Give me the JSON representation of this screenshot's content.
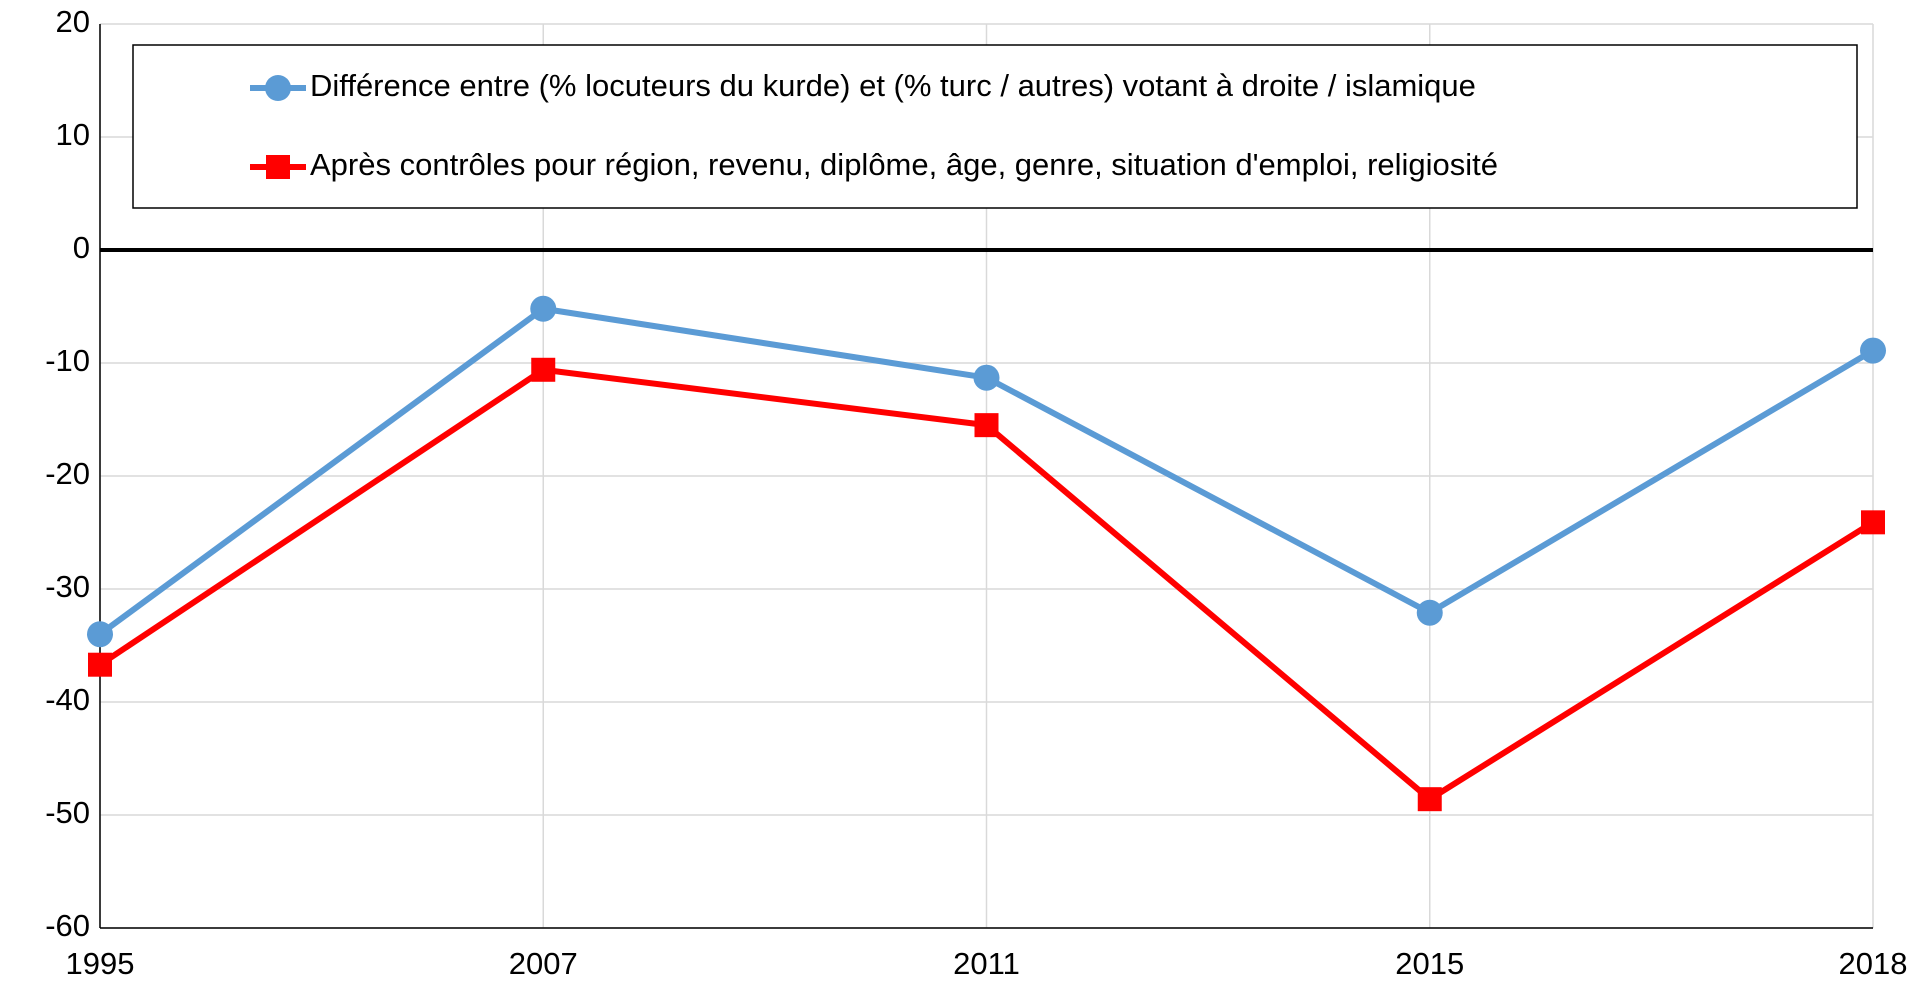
{
  "chart_data": {
    "type": "line",
    "categories": [
      "1995",
      "2007",
      "2011",
      "2015",
      "2018"
    ],
    "series": [
      {
        "name": "Différence entre (% locuteurs du kurde) et (% turc / autres) votant à droite / islamique",
        "color": "#5b9bd5",
        "marker": "circle",
        "values": [
          -34,
          -5.2,
          -11.3,
          -32.1,
          -8.9
        ]
      },
      {
        "name": "Après contrôles pour région, revenu, diplôme, âge, genre, situation d'emploi, religiosité",
        "color": "#ff0000",
        "marker": "square",
        "values": [
          -36.7,
          -10.6,
          -15.5,
          -48.6,
          -24.1
        ]
      }
    ],
    "ylim": [
      -60,
      20
    ],
    "yticks": [
      -60,
      -50,
      -40,
      -30,
      -20,
      -10,
      0,
      10,
      20
    ],
    "grid": true,
    "legend": "top"
  }
}
